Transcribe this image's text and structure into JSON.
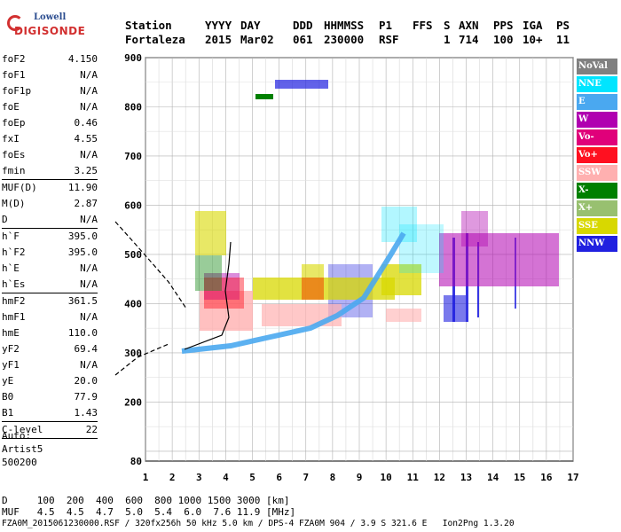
{
  "logo": {
    "brand_top": "Lowell",
    "brand_bottom": "DIGISONDE"
  },
  "header": {
    "labels": {
      "station": "Station",
      "yyyy": "YYYY",
      "day": "DAY",
      "ddd": "DDD",
      "hhmmss": "HHMMSS",
      "p1": "P1",
      "ffs": "FFS",
      "s": "S",
      "axn": "AXN",
      "pps": "PPS",
      "iga": "IGA",
      "ps": "PS"
    },
    "values": {
      "station": "Fortaleza",
      "yyyy": "2015",
      "day": "Mar02",
      "ddd": "061",
      "hhmmss": "230000",
      "p1": "RSF",
      "ffs": "",
      "s": "1",
      "axn": "714",
      "pps": "100",
      "iga": "10+",
      "ps": "11"
    }
  },
  "params": {
    "g1": [
      {
        "label": "foF2",
        "value": "4.150"
      },
      {
        "label": "foF1",
        "value": "N/A"
      },
      {
        "label": "foF1p",
        "value": "N/A"
      },
      {
        "label": "foE",
        "value": "N/A"
      },
      {
        "label": "foEp",
        "value": "0.46"
      },
      {
        "label": "fxI",
        "value": "4.55"
      },
      {
        "label": "foEs",
        "value": "N/A"
      },
      {
        "label": "fmin",
        "value": "3.25"
      }
    ],
    "g2": [
      {
        "label": "MUF(D)",
        "value": "11.90"
      },
      {
        "label": "M(D)",
        "value": "2.87"
      },
      {
        "label": "D",
        "value": "N/A"
      }
    ],
    "g3": [
      {
        "label": "h`F",
        "value": "395.0"
      },
      {
        "label": "h`F2",
        "value": "395.0"
      },
      {
        "label": "h`E",
        "value": "N/A"
      },
      {
        "label": "h`Es",
        "value": "N/A"
      }
    ],
    "g4": [
      {
        "label": "hmF2",
        "value": "361.5"
      },
      {
        "label": "hmF1",
        "value": "N/A"
      },
      {
        "label": "hmE",
        "value": "110.0"
      },
      {
        "label": "yF2",
        "value": "69.4"
      },
      {
        "label": "yF1",
        "value": "N/A"
      },
      {
        "label": "yE",
        "value": "20.0"
      },
      {
        "label": "B0",
        "value": "77.9"
      },
      {
        "label": "B1",
        "value": "1.43"
      }
    ],
    "g5": [
      {
        "label": "C-level",
        "value": "22"
      }
    ]
  },
  "auto": {
    "line1": "Auto:",
    "line2": "Artist5",
    "line3": "500200"
  },
  "legend": [
    {
      "label": "NoVal",
      "color": "#808080"
    },
    {
      "label": "NNE",
      "color": "#00e5ff"
    },
    {
      "label": "E",
      "color": "#4aa8f0"
    },
    {
      "label": "W",
      "color": "#b000b0"
    },
    {
      "label": "Vo-",
      "color": "#e0007a"
    },
    {
      "label": "Vo+",
      "color": "#ff1020"
    },
    {
      "label": "SSW",
      "color": "#ffb0b0"
    },
    {
      "label": "X-",
      "color": "#008000"
    },
    {
      "label": "X+",
      "color": "#98c070"
    },
    {
      "label": "SSE",
      "color": "#d8d800"
    },
    {
      "label": "NNW",
      "color": "#2020e0"
    }
  ],
  "axes": {
    "x_ticks": [
      "1",
      "2",
      "3",
      "4",
      "5",
      "6",
      "7",
      "8",
      "9",
      "10",
      "11",
      "12",
      "13",
      "14",
      "15",
      "16",
      "17"
    ],
    "y_ticks": [
      "80",
      "200",
      "300",
      "400",
      "500",
      "600",
      "700",
      "800",
      "900"
    ]
  },
  "footer": {
    "d_line": "D     100  200  400  600  800 1000 1500 3000 [km]",
    "muf_line": "MUF   4.5  4.5  4.7  5.0  5.4  6.0  7.6 11.9 [MHz]",
    "file_line": "FZA0M_2015061230000.RSF / 320fx256h 50 kHz 5.0 km / DPS-4 FZA0M 904 / 3.9 S 321.6 E   Ion2Png 1.3.20"
  }
}
